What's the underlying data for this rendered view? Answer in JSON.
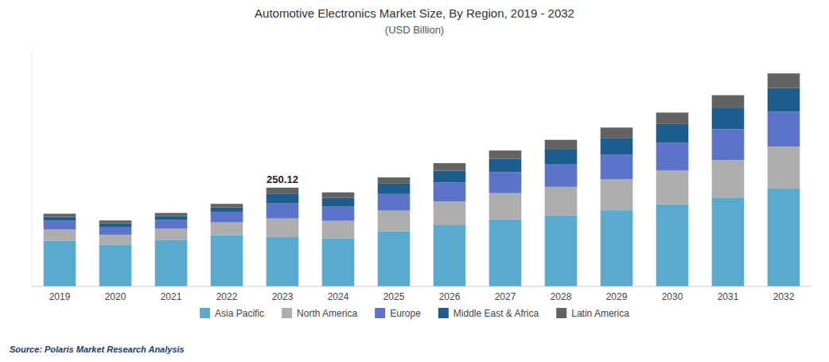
{
  "chart_data": {
    "type": "bar",
    "stacked": true,
    "title": "Automotive Electronics Market Size, By Region, 2019 - 2032",
    "subtitle": "(USD Billion)",
    "source": "Source: Polaris  Market Research Analysis",
    "categories": [
      "2019",
      "2020",
      "2021",
      "2022",
      "2023",
      "2024",
      "2025",
      "2026",
      "2027",
      "2028",
      "2029",
      "2030",
      "2031",
      "2032"
    ],
    "series": [
      {
        "name": "Asia Pacific",
        "color": "#5AAAD0",
        "values": [
          116,
          106,
          118,
          130,
          125,
          122,
          140,
          155,
          170,
          180,
          193,
          208,
          225,
          248
        ]
      },
      {
        "name": "North America",
        "color": "#ADADAD",
        "values": [
          28,
          25,
          28,
          32,
          47,
          44,
          52,
          60,
          66,
          72,
          78,
          86,
          95,
          106
        ]
      },
      {
        "name": "Europe",
        "color": "#5B73C8",
        "values": [
          22,
          20,
          22,
          26,
          38,
          36,
          42,
          48,
          53,
          58,
          63,
          70,
          78,
          88
        ]
      },
      {
        "name": "Middle East & Africa",
        "color": "#1E5C8E",
        "values": [
          10,
          9,
          10,
          12,
          25,
          22,
          26,
          30,
          34,
          38,
          42,
          47,
          53,
          60
        ]
      },
      {
        "name": "Latin America",
        "color": "#636363",
        "values": [
          8,
          7,
          8,
          9,
          15,
          14,
          16,
          19,
          21,
          23,
          26,
          29,
          33,
          37
        ]
      }
    ],
    "annotations": [
      {
        "text": "250.12",
        "category": "2023"
      }
    ],
    "ylim": [
      0,
      600
    ],
    "yticks": [],
    "tick_labels": "x",
    "grid": false,
    "legend": "bottom"
  }
}
